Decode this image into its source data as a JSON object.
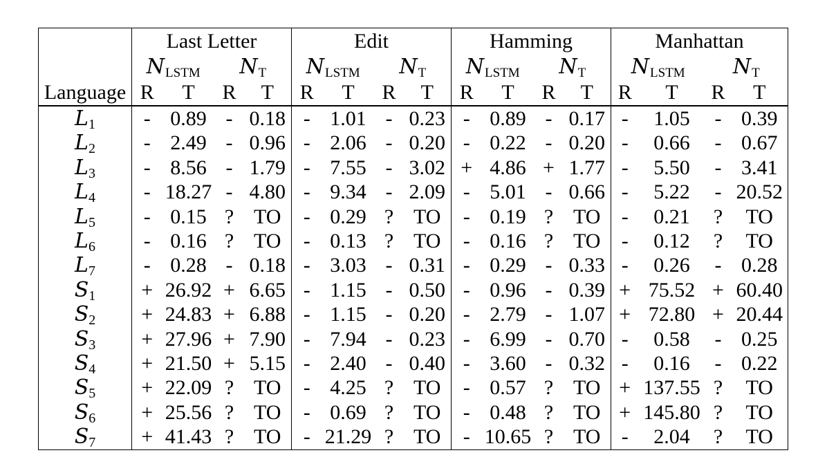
{
  "header": {
    "language_label": "Language",
    "groups": [
      {
        "name": "Last Letter"
      },
      {
        "name": "Edit"
      },
      {
        "name": "Hamming"
      },
      {
        "name": "Manhattan"
      }
    ],
    "model_lstm": {
      "symbol": "N",
      "sub": "LSTM"
    },
    "model_t": {
      "symbol": "N",
      "sub": "T"
    },
    "r_label": "R",
    "t_label": "T"
  },
  "rows": [
    {
      "name": "L",
      "sub": "1",
      "values": [
        "-",
        "0.89",
        "-",
        "0.18",
        "-",
        "1.01",
        "-",
        "0.23",
        "-",
        "0.89",
        "-",
        "0.17",
        "-",
        "1.05",
        "-",
        "0.39"
      ]
    },
    {
      "name": "L",
      "sub": "2",
      "values": [
        "-",
        "2.49",
        "-",
        "0.96",
        "-",
        "2.06",
        "-",
        "0.20",
        "-",
        "0.22",
        "-",
        "0.20",
        "-",
        "0.66",
        "-",
        "0.67"
      ]
    },
    {
      "name": "L",
      "sub": "3",
      "values": [
        "-",
        "8.56",
        "-",
        "1.79",
        "-",
        "7.55",
        "-",
        "3.02",
        "+",
        "4.86",
        "+",
        "1.77",
        "-",
        "5.50",
        "-",
        "3.41"
      ]
    },
    {
      "name": "L",
      "sub": "4",
      "values": [
        "-",
        "18.27",
        "-",
        "4.80",
        "-",
        "9.34",
        "-",
        "2.09",
        "-",
        "5.01",
        "-",
        "0.66",
        "-",
        "5.22",
        "-",
        "20.52"
      ]
    },
    {
      "name": "L",
      "sub": "5",
      "values": [
        "-",
        "0.15",
        "?",
        "TO",
        "-",
        "0.29",
        "?",
        "TO",
        "-",
        "0.19",
        "?",
        "TO",
        "-",
        "0.21",
        "?",
        "TO"
      ]
    },
    {
      "name": "L",
      "sub": "6",
      "values": [
        "-",
        "0.16",
        "?",
        "TO",
        "-",
        "0.13",
        "?",
        "TO",
        "-",
        "0.16",
        "?",
        "TO",
        "-",
        "0.12",
        "?",
        "TO"
      ]
    },
    {
      "name": "L",
      "sub": "7",
      "values": [
        "-",
        "0.28",
        "-",
        "0.18",
        "-",
        "3.03",
        "-",
        "0.31",
        "-",
        "0.29",
        "-",
        "0.33",
        "-",
        "0.26",
        "-",
        "0.28"
      ]
    },
    {
      "name": "S",
      "sub": "1",
      "values": [
        "+",
        "26.92",
        "+",
        "6.65",
        "-",
        "1.15",
        "-",
        "0.50",
        "-",
        "0.96",
        "-",
        "0.39",
        "+",
        "75.52",
        "+",
        "60.40"
      ]
    },
    {
      "name": "S",
      "sub": "2",
      "values": [
        "+",
        "24.83",
        "+",
        "6.88",
        "-",
        "1.15",
        "-",
        "0.20",
        "-",
        "2.79",
        "-",
        "1.07",
        "+",
        "72.80",
        "+",
        "20.44"
      ]
    },
    {
      "name": "S",
      "sub": "3",
      "values": [
        "+",
        "27.96",
        "+",
        "7.90",
        "-",
        "7.94",
        "-",
        "0.23",
        "-",
        "6.99",
        "-",
        "0.70",
        "-",
        "0.58",
        "-",
        "0.25"
      ]
    },
    {
      "name": "S",
      "sub": "4",
      "values": [
        "+",
        "21.50",
        "+",
        "5.15",
        "-",
        "2.40",
        "-",
        "0.40",
        "-",
        "3.60",
        "-",
        "0.32",
        "-",
        "0.16",
        "-",
        "0.22"
      ]
    },
    {
      "name": "S",
      "sub": "5",
      "values": [
        "+",
        "22.09",
        "?",
        "TO",
        "-",
        "4.25",
        "?",
        "TO",
        "-",
        "0.57",
        "?",
        "TO",
        "+",
        "137.55",
        "?",
        "TO"
      ]
    },
    {
      "name": "S",
      "sub": "6",
      "values": [
        "+",
        "25.56",
        "?",
        "TO",
        "-",
        "0.69",
        "?",
        "TO",
        "-",
        "0.48",
        "?",
        "TO",
        "+",
        "145.80",
        "?",
        "TO"
      ]
    },
    {
      "name": "S",
      "sub": "7",
      "values": [
        "+",
        "41.43",
        "?",
        "TO",
        "-",
        "21.29",
        "?",
        "TO",
        "-",
        "10.65",
        "?",
        "TO",
        "-",
        "2.04",
        "?",
        "TO"
      ]
    }
  ],
  "colors": {
    "text": "#000000",
    "background": "#ffffff",
    "border": "#000000"
  }
}
